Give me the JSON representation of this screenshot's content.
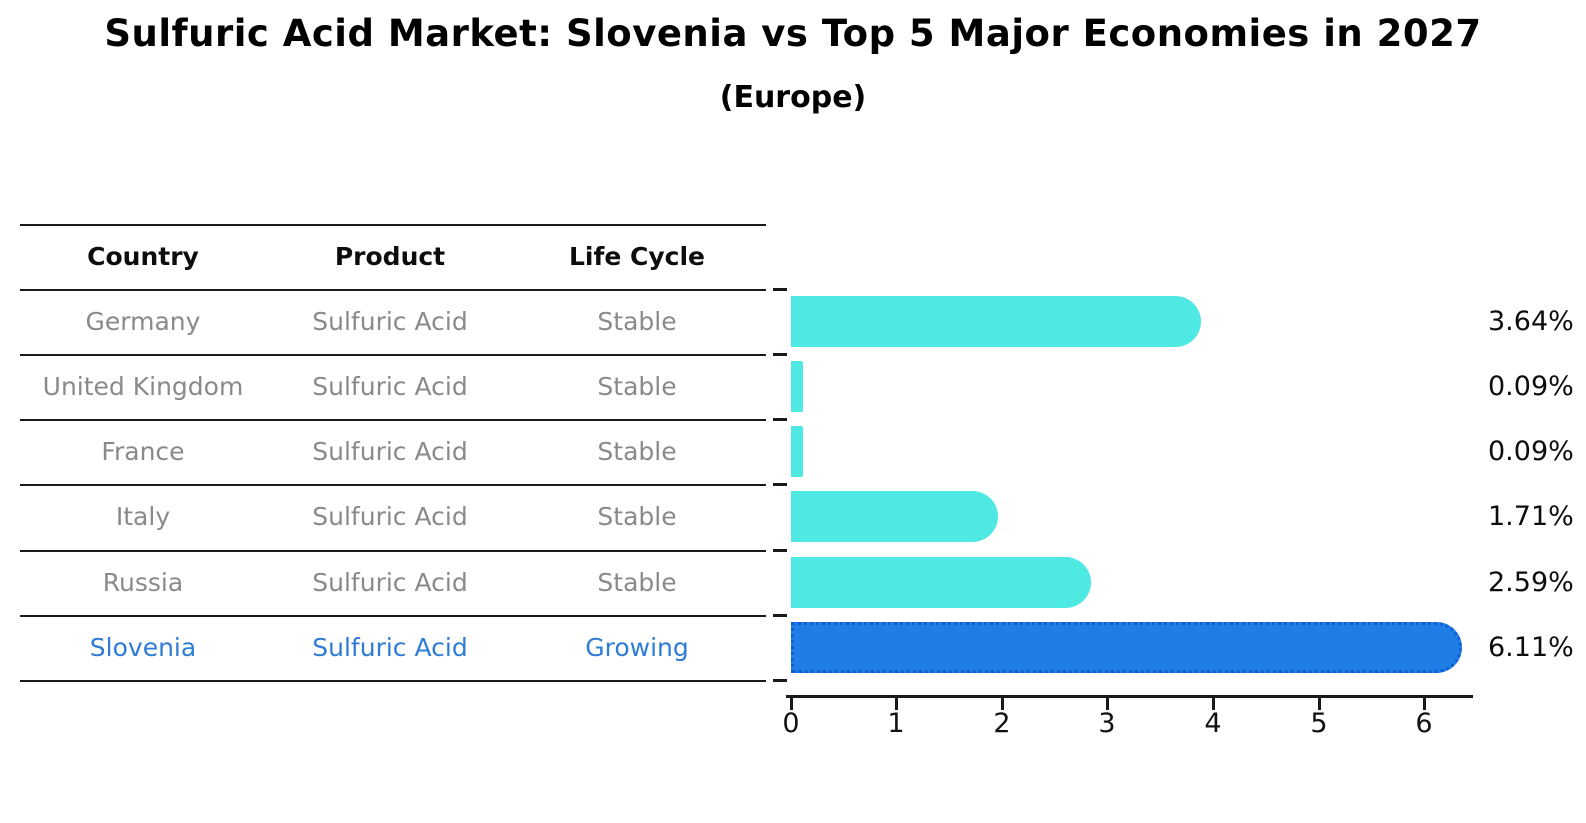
{
  "title": "Sulfuric Acid Market: Slovenia vs Top 5 Major Economies in 2027",
  "subtitle": "(Europe)",
  "table": {
    "headers": [
      "Country",
      "Product",
      "Life Cycle"
    ],
    "rows": [
      {
        "country": "Germany",
        "product": "Sulfuric Acid",
        "life_cycle": "Stable",
        "value_label": "3.64%"
      },
      {
        "country": "United Kingdom",
        "product": "Sulfuric Acid",
        "life_cycle": "Stable",
        "value_label": "0.09%"
      },
      {
        "country": "France",
        "product": "Sulfuric Acid",
        "life_cycle": "Stable",
        "value_label": "0.09%"
      },
      {
        "country": "Italy",
        "product": "Sulfuric Acid",
        "life_cycle": "Stable",
        "value_label": "1.71%"
      },
      {
        "country": "Russia",
        "product": "Sulfuric Acid",
        "life_cycle": "Stable",
        "value_label": "2.59%"
      },
      {
        "country": "Slovenia",
        "product": "Sulfuric Acid",
        "life_cycle": "Growing",
        "value_label": "6.11%"
      }
    ]
  },
  "chart_data": {
    "type": "bar",
    "orientation": "horizontal",
    "title": "Sulfuric Acid Market: Slovenia vs Top 5 Major Economies in 2027",
    "subtitle": "(Europe)",
    "categories": [
      "Germany",
      "United Kingdom",
      "France",
      "Italy",
      "Russia",
      "Slovenia"
    ],
    "values": [
      3.64,
      0.09,
      0.09,
      1.71,
      2.59,
      6.11
    ],
    "value_labels": [
      "3.64%",
      "0.09%",
      "0.09%",
      "1.71%",
      "2.59%",
      "6.11%"
    ],
    "unit": "%",
    "xlabel": "",
    "ylabel": "",
    "xlim": [
      0,
      6.45
    ],
    "xticks": [
      0,
      1,
      2,
      3,
      4,
      5,
      6
    ],
    "grid": false,
    "legend": "none",
    "bar_color": "#4de9e2",
    "highlight_color": "#1e7de6",
    "highlight_border_color": "#0e5fd0",
    "highlight_index": 5,
    "highlight_category": "Slovenia"
  }
}
